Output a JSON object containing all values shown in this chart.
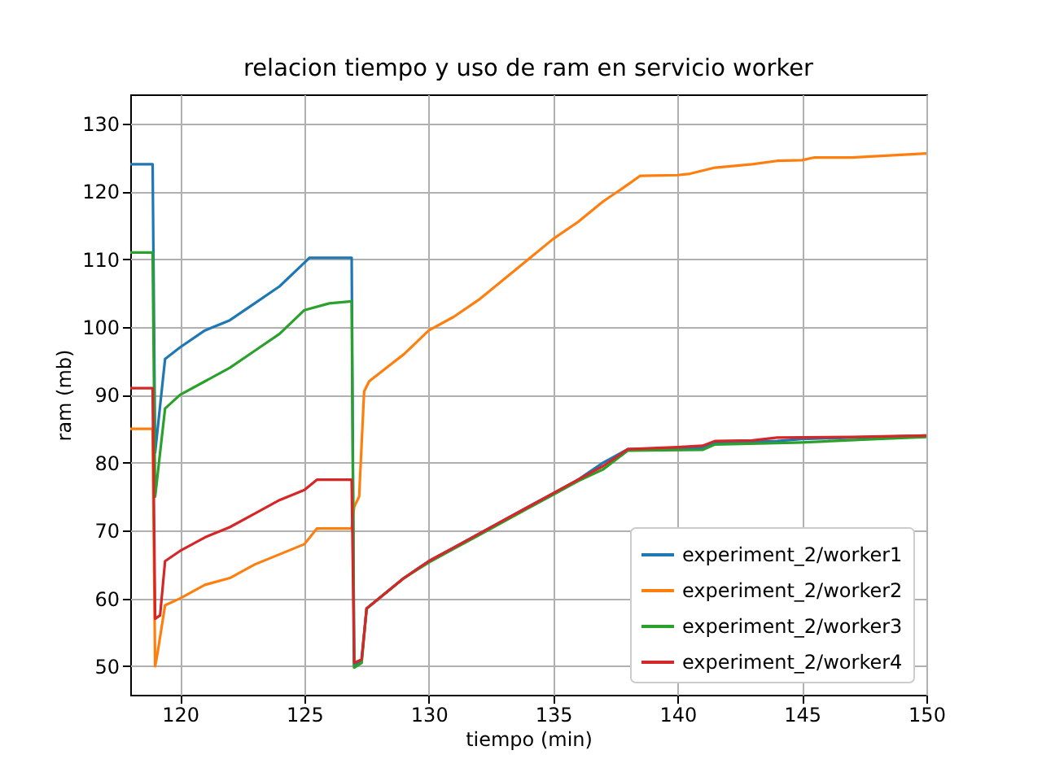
{
  "chart_data": {
    "type": "line",
    "title": "relacion tiempo y uso de ram en servicio worker",
    "xlabel": "tiempo (min)",
    "ylabel": "ram (mb)",
    "xlim": [
      118,
      150
    ],
    "ylim": [
      45.8,
      134.3
    ],
    "xticks": [
      120,
      125,
      130,
      135,
      140,
      145,
      150
    ],
    "yticks": [
      50,
      60,
      70,
      80,
      90,
      100,
      110,
      120,
      130
    ],
    "grid": true,
    "legend": "bottom right",
    "line_style": "solid",
    "series": [
      {
        "name": "experiment_2/worker1",
        "color": "#1f77b4",
        "x": [
          118,
          118.9,
          119.0,
          119.4,
          120,
          121,
          122,
          123,
          124,
          125,
          125.2,
          126.9,
          127.0,
          127.3,
          127.5,
          128,
          129,
          130,
          131,
          132,
          133,
          134,
          135,
          136,
          137,
          138,
          141,
          141.5,
          144,
          145,
          147,
          150
        ],
        "values": [
          124,
          124,
          81.5,
          95.3,
          97,
          99.5,
          101,
          103.5,
          106,
          109.5,
          110.2,
          110.2,
          50,
          51,
          58.5,
          60,
          63,
          65.5,
          67.5,
          69.5,
          71.5,
          73.5,
          75.5,
          77.5,
          80,
          82,
          82.2,
          83,
          83.2,
          83.5,
          83.7,
          84
        ]
      },
      {
        "name": "experiment_2/worker2",
        "color": "#ff7f0e",
        "x": [
          118,
          118.9,
          119.0,
          119.1,
          119.4,
          120,
          121,
          122,
          123,
          124,
          125,
          125.5,
          126.9,
          127.0,
          127.2,
          127.4,
          127.6,
          128.3,
          129,
          130,
          131,
          132,
          133,
          134,
          135,
          136,
          137,
          138,
          138.5,
          140,
          140.5,
          141.5,
          143,
          144,
          145,
          145.5,
          147,
          148.5,
          150
        ],
        "values": [
          85,
          85,
          50,
          52,
          59,
          60,
          62,
          63,
          65,
          66.5,
          68,
          70.3,
          70.3,
          73.5,
          75,
          90.5,
          92,
          94,
          96,
          99.5,
          101.5,
          104,
          107,
          110,
          113,
          115.5,
          118.5,
          121,
          122.3,
          122.4,
          122.6,
          123.5,
          124,
          124.5,
          124.6,
          125,
          125,
          125.3,
          125.6
        ]
      },
      {
        "name": "experiment_2/worker3",
        "color": "#2ca02c",
        "x": [
          118,
          118.9,
          119.0,
          119.4,
          120,
          121,
          122,
          123,
          124,
          125,
          126,
          126.9,
          127.0,
          127.3,
          127.5,
          128,
          129,
          130,
          131,
          132,
          133,
          134,
          135,
          136,
          137,
          138,
          141,
          141.5,
          145,
          148,
          150
        ],
        "values": [
          111,
          111,
          75,
          88,
          90,
          92,
          94,
          96.5,
          99,
          102.5,
          103.5,
          103.8,
          49.8,
          50.5,
          58.5,
          60,
          63,
          65.3,
          67.3,
          69.3,
          71.3,
          73.3,
          75.3,
          77.3,
          79,
          81.8,
          81.9,
          82.7,
          83,
          83.5,
          83.8
        ]
      },
      {
        "name": "experiment_2/worker4",
        "color": "#d62728",
        "x": [
          118,
          118.9,
          119.0,
          119.2,
          119.4,
          120,
          121,
          122,
          123,
          124,
          125,
          125.5,
          126.9,
          127.0,
          127.3,
          127.5,
          128,
          129,
          130,
          131,
          132,
          133,
          134,
          135,
          136,
          137,
          138,
          140,
          141,
          141.5,
          143,
          144,
          147,
          150
        ],
        "values": [
          91,
          91,
          57,
          57.5,
          65.5,
          67,
          69,
          70.5,
          72.5,
          74.5,
          76,
          77.5,
          77.5,
          50.5,
          51,
          58.5,
          60,
          63,
          65.5,
          67.5,
          69.5,
          71.5,
          73.5,
          75.5,
          77.5,
          79.5,
          82,
          82.3,
          82.5,
          83.2,
          83.3,
          83.7,
          83.8,
          84
        ]
      }
    ]
  }
}
